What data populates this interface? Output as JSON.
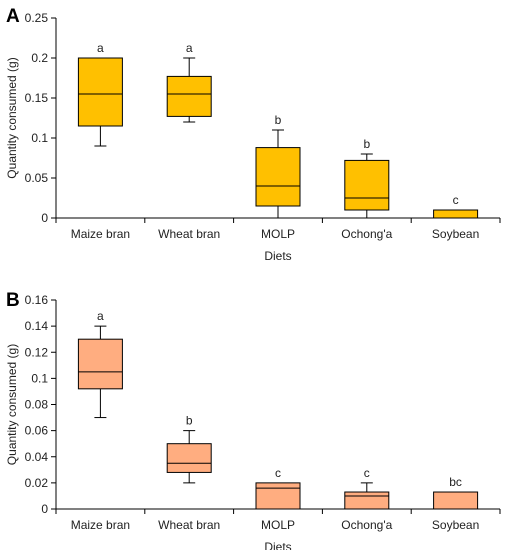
{
  "chart_data": [
    {
      "type": "box",
      "panel_label": "A",
      "xlabel": "Diets",
      "ylabel": "Quantity consumed (g)",
      "ylim": [
        0,
        0.25
      ],
      "yticks": [
        0,
        0.05,
        0.1,
        0.15,
        0.2,
        0.25
      ],
      "ytick_labels": [
        "0",
        "0.05",
        "0.1",
        "0.15",
        "0.2",
        "0.25"
      ],
      "box_color": "#FFC000",
      "categories": [
        "Maize bran",
        "Wheat bran",
        "MOLP",
        "Ochong'a",
        "Soybean"
      ],
      "boxes": [
        {
          "min": 0.09,
          "q1": 0.115,
          "median": 0.155,
          "q3": 0.2,
          "max": 0.2,
          "letter": "a"
        },
        {
          "min": 0.12,
          "q1": 0.127,
          "median": 0.155,
          "q3": 0.177,
          "max": 0.2,
          "letter": "a"
        },
        {
          "min": 0.0,
          "q1": 0.015,
          "median": 0.04,
          "q3": 0.088,
          "max": 0.11,
          "letter": "b"
        },
        {
          "min": 0.0,
          "q1": 0.01,
          "median": 0.025,
          "q3": 0.072,
          "max": 0.08,
          "letter": "b"
        },
        {
          "min": 0.0,
          "q1": 0.0,
          "median": 0.0,
          "q3": 0.01,
          "max": 0.01,
          "letter": "c"
        }
      ]
    },
    {
      "type": "box",
      "panel_label": "B",
      "xlabel": "Diets",
      "ylabel": "Quantity consumed (g)",
      "ylim": [
        0,
        0.16
      ],
      "yticks": [
        0,
        0.02,
        0.04,
        0.06,
        0.08,
        0.1,
        0.12,
        0.14,
        0.16
      ],
      "ytick_labels": [
        "0",
        "0.02",
        "0.04",
        "0.06",
        "0.08",
        "0.1",
        "0.12",
        "0.14",
        "0.16"
      ],
      "box_color": "#FFAD80",
      "categories": [
        "Maize bran",
        "Wheat bran",
        "MOLP",
        "Ochong'a",
        "Soybean"
      ],
      "boxes": [
        {
          "min": 0.07,
          "q1": 0.092,
          "median": 0.105,
          "q3": 0.13,
          "max": 0.14,
          "letter": "a"
        },
        {
          "min": 0.02,
          "q1": 0.028,
          "median": 0.035,
          "q3": 0.05,
          "max": 0.06,
          "letter": "b"
        },
        {
          "min": 0.0,
          "q1": 0.0,
          "median": 0.016,
          "q3": 0.02,
          "max": 0.02,
          "letter": "c"
        },
        {
          "min": 0.0,
          "q1": 0.0,
          "median": 0.01,
          "q3": 0.013,
          "max": 0.02,
          "letter": "c"
        },
        {
          "min": 0.0,
          "q1": 0.0,
          "median": 0.0,
          "q3": 0.013,
          "max": 0.013,
          "letter": "bc"
        }
      ]
    }
  ]
}
